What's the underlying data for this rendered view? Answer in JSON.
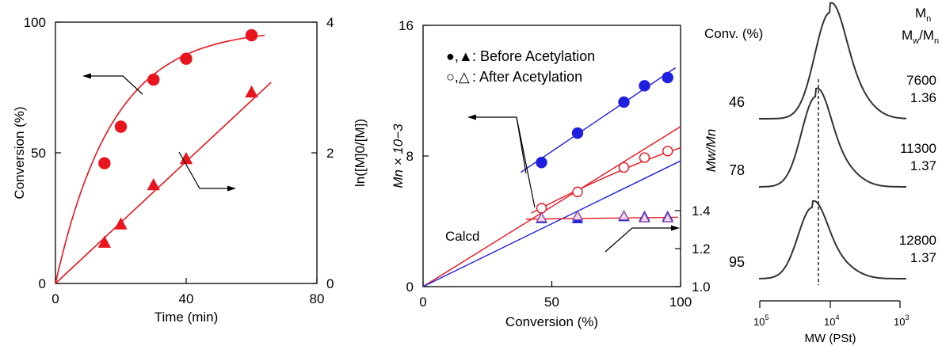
{
  "colors": {
    "red": "#e8141e",
    "blue": "#1f1fe0",
    "gray": "#333333",
    "black": "#000000",
    "purple": "#7a4aa8"
  },
  "chart_data": [
    {
      "type": "scatter",
      "id": "conversion-vs-time",
      "xlabel": "Time (min)",
      "ylabel": "Conversion (%)",
      "y2label": "ln([M]0/[M])",
      "xlim": [
        0,
        80
      ],
      "ylim": [
        0,
        100
      ],
      "y2lim": [
        0,
        4
      ],
      "xticks": [
        0,
        40,
        80
      ],
      "xtick_labels": [
        "0",
        "40",
        "80"
      ],
      "yticks": [
        0,
        50,
        100
      ],
      "ytick_labels": [
        "0",
        "50",
        "100"
      ],
      "y2ticks": [
        0,
        2,
        4
      ],
      "y2tick_labels": [
        "0",
        "2",
        "4"
      ],
      "series": [
        {
          "marker": "circle",
          "axis": "left",
          "x": [
            15,
            20,
            30,
            40,
            60
          ],
          "y": [
            46,
            60,
            78,
            86,
            95
          ]
        },
        {
          "marker": "triangle",
          "axis": "right",
          "x": [
            15,
            20,
            30,
            40,
            60
          ],
          "y": [
            0.62,
            0.9,
            1.5,
            1.9,
            2.92
          ]
        }
      ]
    },
    {
      "type": "scatter",
      "id": "mn-vs-conversion",
      "xlabel": "Conversion (%)",
      "ylabel": "Mn × 10−3",
      "y2label": "Mw/Mn",
      "xlim": [
        0,
        100
      ],
      "ylim": [
        0,
        16
      ],
      "xticks": [
        0,
        50,
        100
      ],
      "xtick_labels": [
        "0",
        "50",
        "100"
      ],
      "yticks": [
        0,
        8,
        16
      ],
      "ytick_labels": [
        "0",
        "8",
        "16"
      ],
      "y2ticks": [
        1.0,
        1.2,
        1.4
      ],
      "y2tick_labels": [
        "1.0",
        "1.2",
        "1.4"
      ],
      "legend": [
        {
          "markers": "●,▲",
          "text": ": Before Acetylation",
          "color": "blue"
        },
        {
          "markers": "○,△",
          "text": ": After Acetylation",
          "color": "red"
        }
      ],
      "annotation": "Calcd",
      "series": [
        {
          "label": "Before Acetylation Mn",
          "marker": "filled-circle",
          "x": [
            46,
            60,
            78,
            86,
            95
          ],
          "y": [
            7.6,
            9.4,
            11.3,
            12.3,
            12.8
          ]
        },
        {
          "label": "After Acetylation Mn",
          "marker": "open-circle",
          "x": [
            46,
            60,
            78,
            86,
            95
          ],
          "y": [
            4.8,
            5.8,
            7.3,
            7.9,
            8.3
          ]
        },
        {
          "label": "Before Acetylation Mw/Mn",
          "marker": "filled-triangle",
          "x": [
            46,
            60,
            78,
            86,
            95
          ],
          "y": [
            1.36,
            1.36,
            1.37,
            1.37,
            1.37
          ]
        },
        {
          "label": "After Acetylation Mw/Mn",
          "marker": "open-triangle",
          "x": [
            46,
            60,
            78,
            86,
            95
          ],
          "y": [
            1.36,
            1.37,
            1.37,
            1.36,
            1.36
          ]
        }
      ]
    },
    {
      "type": "line",
      "id": "mwd-curves",
      "title": "Conv. (%)",
      "right_header": [
        "Mn",
        "Mw/Mn"
      ],
      "xlabel": "MW (PSt)",
      "xscale": "log-reversed",
      "xtick_labels": [
        "10^5",
        "10^4",
        "10^3"
      ],
      "curves": [
        {
          "conversion": "46",
          "mn": "7600",
          "pdi": "1.36",
          "peak_log_mw": 4.0
        },
        {
          "conversion": "78",
          "mn": "11300",
          "pdi": "1.37",
          "peak_log_mw": 4.2
        },
        {
          "conversion": "95",
          "mn": "12800",
          "pdi": "1.37",
          "peak_log_mw": 4.25
        }
      ]
    }
  ]
}
